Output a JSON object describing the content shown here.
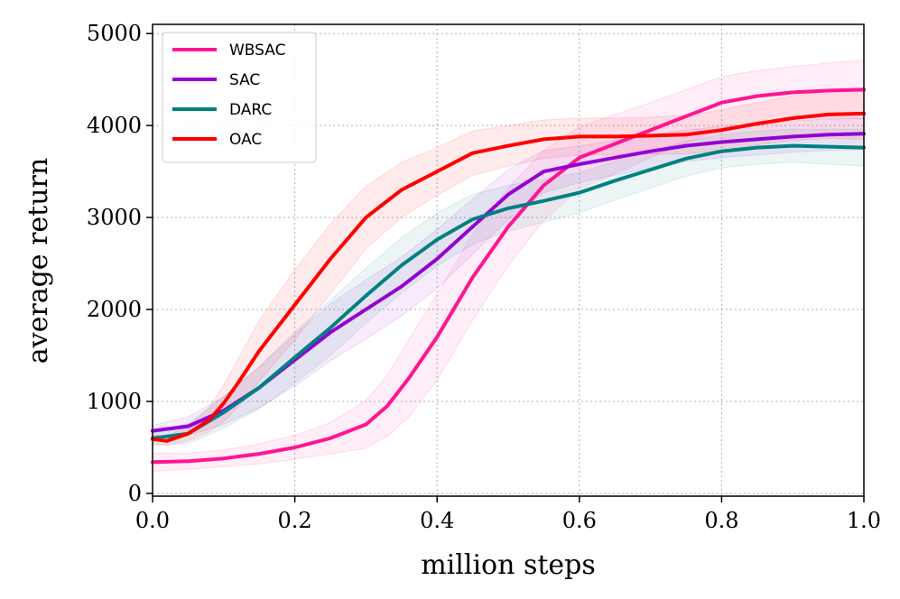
{
  "chart_data": {
    "type": "line",
    "title": "",
    "xlabel": "million steps",
    "ylabel": "average return",
    "xlim": [
      0.0,
      1.0
    ],
    "ylim": [
      -30,
      5100
    ],
    "grid": true,
    "legend_position": "top-left",
    "x_ticks": [
      "0.0",
      "0.2",
      "0.4",
      "0.6",
      "0.8",
      "1.0"
    ],
    "x_tick_values": [
      0.0,
      0.2,
      0.4,
      0.6,
      0.8,
      1.0
    ],
    "y_ticks": [
      "0",
      "1000",
      "2000",
      "3000",
      "4000",
      "5000"
    ],
    "y_tick_values": [
      0,
      1000,
      2000,
      3000,
      4000,
      5000
    ],
    "series": [
      {
        "name": "WBSAC",
        "color": "#ff1493",
        "x": [
          0.0,
          0.05,
          0.1,
          0.15,
          0.2,
          0.25,
          0.3,
          0.33,
          0.36,
          0.4,
          0.45,
          0.5,
          0.55,
          0.6,
          0.65,
          0.7,
          0.75,
          0.8,
          0.85,
          0.9,
          0.95,
          1.0
        ],
        "y": [
          340,
          350,
          380,
          430,
          500,
          600,
          750,
          950,
          1250,
          1700,
          2350,
          2900,
          3350,
          3650,
          3800,
          3950,
          4100,
          4250,
          4320,
          4360,
          4380,
          4390
        ],
        "spread": [
          100,
          90,
          90,
          110,
          130,
          170,
          260,
          330,
          420,
          470,
          470,
          420,
          380,
          340,
          320,
          300,
          290,
          280,
          280,
          280,
          300,
          320
        ]
      },
      {
        "name": "SAC",
        "color": "#9400d3",
        "x": [
          0.0,
          0.05,
          0.1,
          0.15,
          0.2,
          0.25,
          0.3,
          0.35,
          0.4,
          0.45,
          0.5,
          0.55,
          0.6,
          0.65,
          0.7,
          0.75,
          0.8,
          0.85,
          0.9,
          0.95,
          1.0
        ],
        "y": [
          680,
          730,
          900,
          1150,
          1450,
          1750,
          2000,
          2250,
          2550,
          2900,
          3250,
          3500,
          3580,
          3650,
          3720,
          3780,
          3820,
          3850,
          3880,
          3900,
          3910
        ],
        "spread": [
          60,
          100,
          150,
          220,
          280,
          310,
          320,
          320,
          320,
          300,
          270,
          230,
          200,
          190,
          180,
          170,
          170,
          170,
          170,
          170,
          170
        ]
      },
      {
        "name": "DARC",
        "color": "#008080",
        "x": [
          0.0,
          0.05,
          0.1,
          0.15,
          0.2,
          0.25,
          0.3,
          0.35,
          0.4,
          0.45,
          0.5,
          0.55,
          0.6,
          0.65,
          0.7,
          0.75,
          0.8,
          0.85,
          0.9,
          0.95,
          1.0
        ],
        "y": [
          600,
          650,
          880,
          1150,
          1480,
          1800,
          2150,
          2480,
          2760,
          2980,
          3100,
          3180,
          3270,
          3400,
          3520,
          3640,
          3720,
          3760,
          3780,
          3770,
          3760
        ],
        "spread": [
          70,
          110,
          170,
          230,
          280,
          300,
          300,
          300,
          290,
          270,
          250,
          230,
          220,
          210,
          200,
          190,
          180,
          180,
          180,
          190,
          200
        ]
      },
      {
        "name": "OAC",
        "color": "#ff0000",
        "x": [
          0.0,
          0.02,
          0.05,
          0.08,
          0.1,
          0.12,
          0.15,
          0.2,
          0.25,
          0.3,
          0.35,
          0.4,
          0.45,
          0.5,
          0.55,
          0.6,
          0.65,
          0.7,
          0.75,
          0.8,
          0.85,
          0.9,
          0.95,
          1.0
        ],
        "y": [
          590,
          570,
          650,
          800,
          980,
          1200,
          1550,
          2050,
          2550,
          3000,
          3300,
          3500,
          3700,
          3780,
          3850,
          3880,
          3880,
          3890,
          3900,
          3950,
          4020,
          4080,
          4120,
          4130
        ],
        "spread": [
          50,
          50,
          80,
          130,
          200,
          260,
          330,
          380,
          380,
          340,
          300,
          260,
          240,
          220,
          210,
          200,
          200,
          200,
          210,
          220,
          230,
          240,
          260,
          280
        ]
      }
    ]
  }
}
